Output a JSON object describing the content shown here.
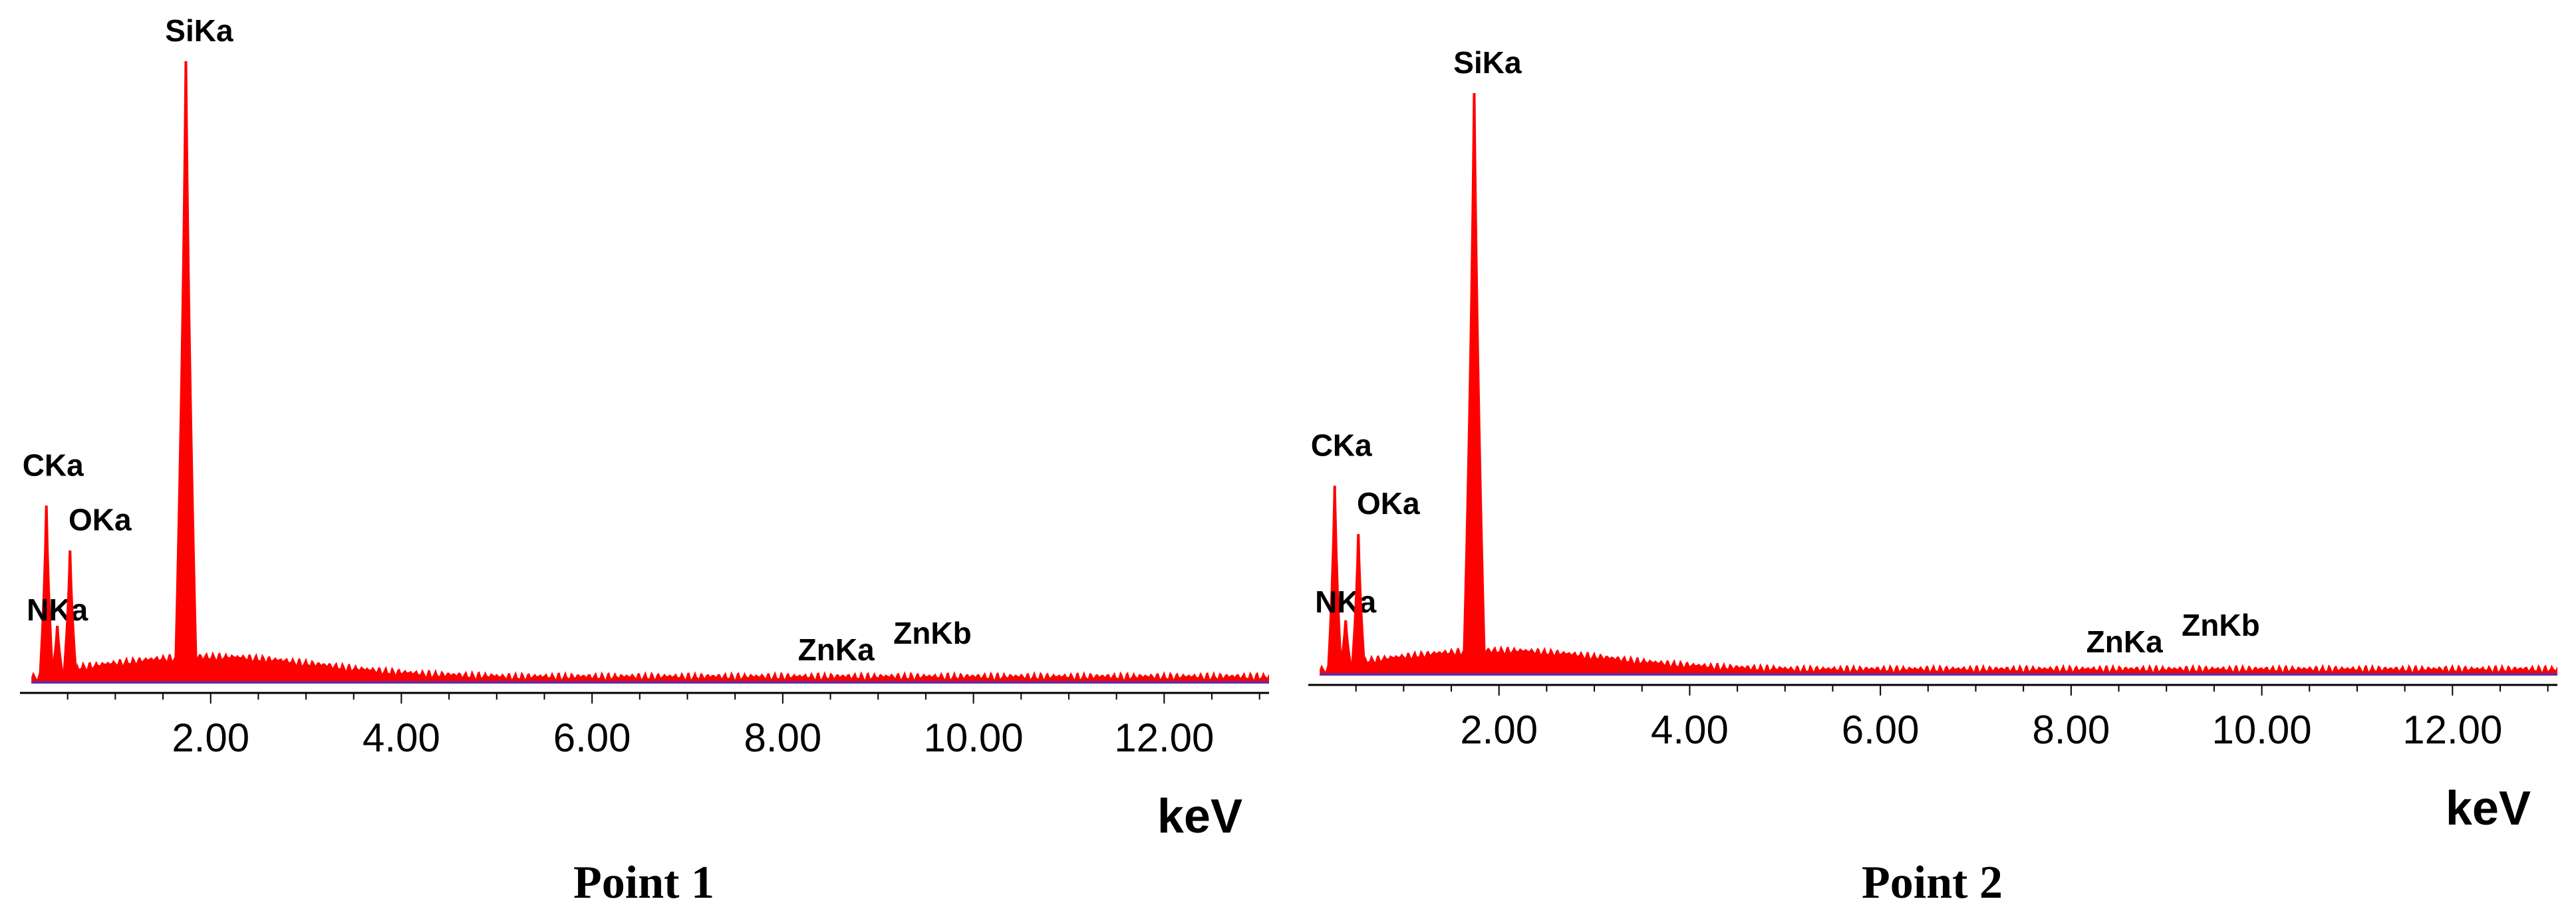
{
  "chart_data": [
    {
      "type": "area",
      "caption": "Point 1",
      "xlabel": "keV",
      "ylabel": "",
      "xlim": [
        0.0,
        13.1
      ],
      "ylim": [
        0,
        100
      ],
      "xticks": [
        2.0,
        4.0,
        6.0,
        8.0,
        10.0,
        12.0
      ],
      "xtick_labels": [
        "2.00",
        "4.00",
        "6.00",
        "8.00",
        "10.00",
        "12.00"
      ],
      "grid": false,
      "colors": {
        "spectrum": "#ff0000",
        "baseline": "#3a3acc",
        "axis": "#000000"
      },
      "series": [
        {
          "values": [
            {
              "x": 0.277,
              "y": 28.6,
              "label": "CKa"
            },
            {
              "x": 0.392,
              "y": 9.3,
              "label": "NKa"
            },
            {
              "x": 0.525,
              "y": 21.4,
              "label": "OKa"
            },
            {
              "x": 1.74,
              "y": 100,
              "label": "SiKa"
            },
            {
              "x": 8.63,
              "y": 1.2,
              "label": "ZnKa"
            },
            {
              "x": 9.57,
              "y": 1.0,
              "label": "ZnKb"
            }
          ]
        }
      ]
    },
    {
      "type": "area",
      "caption": "Point 2",
      "xlabel": "keV",
      "ylabel": "",
      "xlim": [
        0.0,
        13.1
      ],
      "ylim": [
        0,
        100
      ],
      "xticks": [
        2.0,
        4.0,
        6.0,
        8.0,
        10.0,
        12.0
      ],
      "xtick_labels": [
        "2.00",
        "4.00",
        "6.00",
        "8.00",
        "10.00",
        "12.00"
      ],
      "grid": false,
      "colors": {
        "spectrum": "#ff0000",
        "baseline": "#3a3acc",
        "axis": "#000000"
      },
      "series": [
        {
          "values": [
            {
              "x": 0.277,
              "y": 32.6,
              "label": "CKa"
            },
            {
              "x": 0.392,
              "y": 9.5,
              "label": "NKa"
            },
            {
              "x": 0.525,
              "y": 24.3,
              "label": "OKa"
            },
            {
              "x": 1.74,
              "y": 100,
              "label": "SiKa"
            },
            {
              "x": 8.63,
              "y": 1.3,
              "label": "ZnKa"
            },
            {
              "x": 9.57,
              "y": 1.2,
              "label": "ZnKb"
            }
          ]
        }
      ]
    }
  ]
}
